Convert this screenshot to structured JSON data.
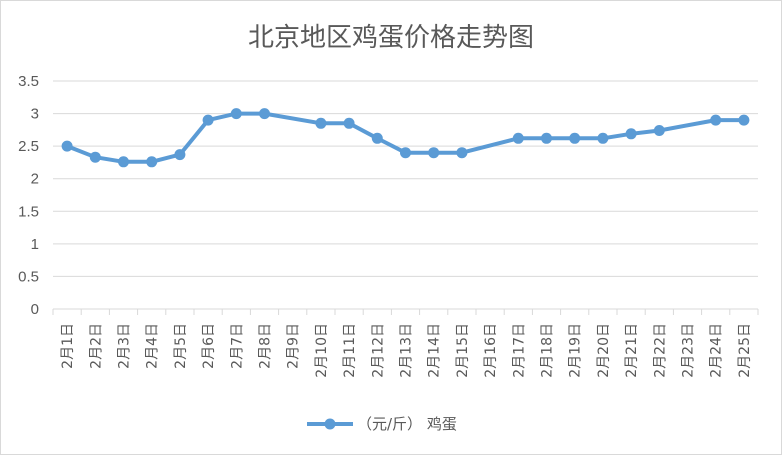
{
  "chart_data": {
    "type": "line",
    "title": "北京地区鸡蛋价格走势图",
    "categories": [
      "2月1日",
      "2月2日",
      "2月3日",
      "2月4日",
      "2月5日",
      "2月6日",
      "2月7日",
      "2月8日",
      "2月9日",
      "2月10日",
      "2月11日",
      "2月12日",
      "2月13日",
      "2月14日",
      "2月15日",
      "2月16日",
      "2月17日",
      "2月18日",
      "2月19日",
      "2月20日",
      "2月21日",
      "2月22日",
      "2月23日",
      "2月24日",
      "2月25日"
    ],
    "series": [
      {
        "name": "（元/斤） 鸡蛋",
        "color": "#5b9bd5",
        "values": [
          2.5,
          2.33,
          2.26,
          2.26,
          2.37,
          2.9,
          3.0,
          3.0,
          null,
          2.85,
          2.85,
          2.62,
          2.4,
          2.4,
          2.4,
          null,
          2.62,
          2.62,
          2.62,
          2.62,
          2.69,
          2.74,
          null,
          2.9,
          2.9
        ]
      }
    ],
    "y_ticks": [
      "0",
      "0.5",
      "1",
      "1.5",
      "2",
      "2.5",
      "3",
      "3.5"
    ],
    "ylim": [
      0,
      3.5
    ],
    "grid": true,
    "legend": "bottom"
  }
}
